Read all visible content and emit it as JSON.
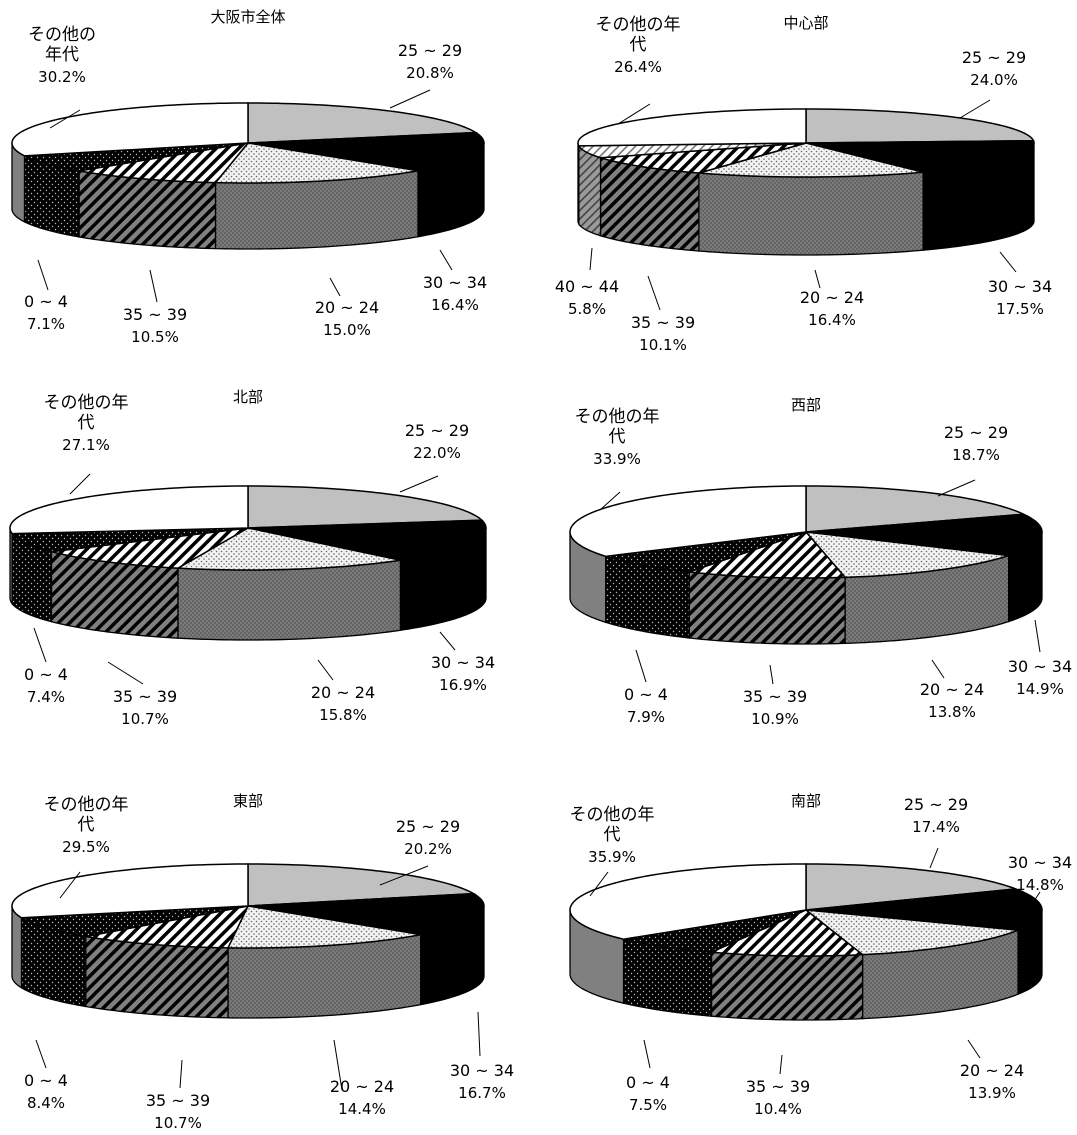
{
  "colors": {
    "age_25_29": "#c0c0c0",
    "age_30_34": "#000000",
    "age_20_24": "#e0e0e0 dotted",
    "age_35_39": "#ffffff diagonal-stripes",
    "age_40_44": "#ffffff light-diagonal",
    "age_0_4": "#000000 white-dots",
    "other": "#ffffff"
  },
  "chart_data": [
    {
      "type": "pie",
      "title": "大阪市全体",
      "slices": [
        {
          "label": "25 ~ 29",
          "value": 20.8,
          "value_label": "20.8%",
          "key": "age_25_29"
        },
        {
          "label": "30 ~ 34",
          "value": 16.4,
          "value_label": "16.4%",
          "key": "age_30_34"
        },
        {
          "label": "20 ~ 24",
          "value": 15.0,
          "value_label": "15.0%",
          "key": "age_20_24"
        },
        {
          "label": "35 ~ 39",
          "value": 10.5,
          "value_label": "10.5%",
          "key": "age_35_39"
        },
        {
          "label": "0 ~ 4",
          "value": 7.1,
          "value_label": "7.1%",
          "key": "age_0_4"
        },
        {
          "label": "その他の年代",
          "value": 30.2,
          "value_label": "30.2%",
          "key": "other"
        }
      ]
    },
    {
      "type": "pie",
      "title": "中心部",
      "slices": [
        {
          "label": "25 ~ 29",
          "value": 24.0,
          "value_label": "24.0%",
          "key": "age_25_29"
        },
        {
          "label": "30 ~ 34",
          "value": 17.5,
          "value_label": "17.5%",
          "key": "age_30_34"
        },
        {
          "label": "20 ~ 24",
          "value": 16.4,
          "value_label": "16.4%",
          "key": "age_20_24"
        },
        {
          "label": "35 ~ 39",
          "value": 10.1,
          "value_label": "10.1%",
          "key": "age_35_39"
        },
        {
          "label": "40 ~ 44",
          "value": 5.8,
          "value_label": "5.8%",
          "key": "age_40_44"
        },
        {
          "label": "その他の年代",
          "value": 26.4,
          "value_label": "26.4%",
          "key": "other"
        }
      ]
    },
    {
      "type": "pie",
      "title": "北部",
      "slices": [
        {
          "label": "25 ~ 29",
          "value": 22.0,
          "value_label": "22.0%",
          "key": "age_25_29"
        },
        {
          "label": "30 ~ 34",
          "value": 16.9,
          "value_label": "16.9%",
          "key": "age_30_34"
        },
        {
          "label": "20 ~ 24",
          "value": 15.8,
          "value_label": "15.8%",
          "key": "age_20_24"
        },
        {
          "label": "35 ~ 39",
          "value": 10.7,
          "value_label": "10.7%",
          "key": "age_35_39"
        },
        {
          "label": "0 ~ 4",
          "value": 7.4,
          "value_label": "7.4%",
          "key": "age_0_4"
        },
        {
          "label": "その他の年代",
          "value": 27.1,
          "value_label": "27.1%",
          "key": "other"
        }
      ]
    },
    {
      "type": "pie",
      "title": "西部",
      "slices": [
        {
          "label": "25 ~ 29",
          "value": 18.7,
          "value_label": "18.7%",
          "key": "age_25_29"
        },
        {
          "label": "30 ~ 34",
          "value": 14.9,
          "value_label": "14.9%",
          "key": "age_30_34"
        },
        {
          "label": "20 ~ 24",
          "value": 13.8,
          "value_label": "13.8%",
          "key": "age_20_24"
        },
        {
          "label": "35 ~ 39",
          "value": 10.9,
          "value_label": "10.9%",
          "key": "age_35_39"
        },
        {
          "label": "0 ~ 4",
          "value": 7.9,
          "value_label": "7.9%",
          "key": "age_0_4"
        },
        {
          "label": "その他の年代",
          "value": 33.9,
          "value_label": "33.9%",
          "key": "other"
        }
      ]
    },
    {
      "type": "pie",
      "title": "東部",
      "slices": [
        {
          "label": "25 ~ 29",
          "value": 20.2,
          "value_label": "20.2%",
          "key": "age_25_29"
        },
        {
          "label": "30 ~ 34",
          "value": 16.7,
          "value_label": "16.7%",
          "key": "age_30_34"
        },
        {
          "label": "20 ~ 24",
          "value": 14.4,
          "value_label": "14.4%",
          "key": "age_20_24"
        },
        {
          "label": "35 ~ 39",
          "value": 10.7,
          "value_label": "10.7%",
          "key": "age_35_39"
        },
        {
          "label": "0 ~ 4",
          "value": 8.4,
          "value_label": "8.4%",
          "key": "age_0_4"
        },
        {
          "label": "その他の年代",
          "value": 29.5,
          "value_label": "29.5%",
          "key": "other"
        }
      ]
    },
    {
      "type": "pie",
      "title": "南部",
      "slices": [
        {
          "label": "25 ~ 29",
          "value": 17.4,
          "value_label": "17.4%",
          "key": "age_25_29"
        },
        {
          "label": "30 ~ 34",
          "value": 14.8,
          "value_label": "14.8%",
          "key": "age_30_34"
        },
        {
          "label": "20 ~ 24",
          "value": 13.9,
          "value_label": "13.9%",
          "key": "age_20_24"
        },
        {
          "label": "35 ~ 39",
          "value": 10.4,
          "value_label": "10.4%",
          "key": "age_35_39"
        },
        {
          "label": "0 ~ 4",
          "value": 7.5,
          "value_label": "7.5%",
          "key": "age_0_4"
        },
        {
          "label": "その他の年代",
          "value": 35.9,
          "value_label": "35.9%",
          "key": "other"
        }
      ]
    }
  ]
}
